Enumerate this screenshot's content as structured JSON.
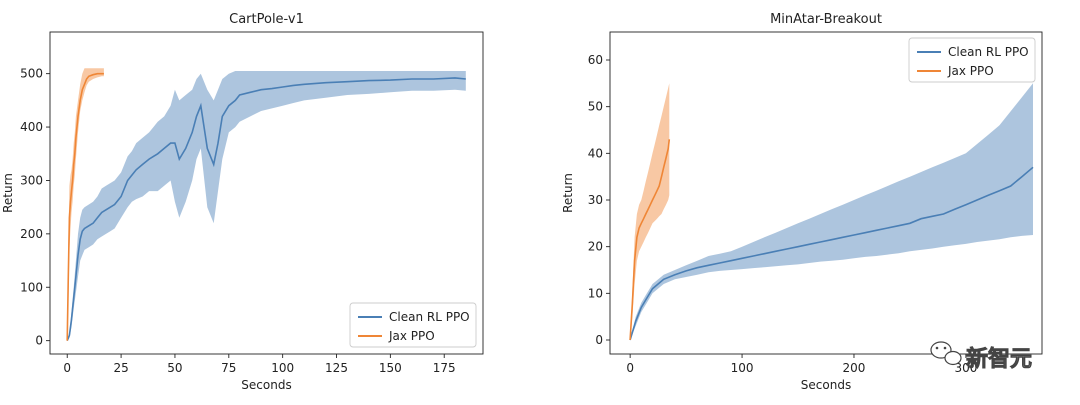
{
  "watermark": {
    "text": "新智元",
    "icon": "wechat-icon"
  },
  "chart_data": [
    {
      "type": "line",
      "title": "CartPole-v1",
      "xlabel": "Seconds",
      "ylabel": "Return",
      "xlim": [
        -8,
        193
      ],
      "ylim": [
        -25,
        578
      ],
      "xticks": [
        0,
        25,
        50,
        75,
        100,
        125,
        150,
        175
      ],
      "yticks": [
        0,
        100,
        200,
        300,
        400,
        500
      ],
      "grid": false,
      "legend_position": "bottom-right",
      "series": [
        {
          "name": "Clean RL PPO",
          "color": "#4a7fb5",
          "x": [
            0,
            1,
            2,
            3,
            4,
            5,
            6,
            7,
            8,
            10,
            12,
            14,
            16,
            18,
            20,
            22,
            25,
            28,
            30,
            32,
            35,
            38,
            40,
            42,
            45,
            48,
            50,
            52,
            55,
            58,
            60,
            62,
            65,
            68,
            70,
            72,
            75,
            78,
            80,
            85,
            90,
            95,
            100,
            105,
            110,
            120,
            130,
            140,
            150,
            160,
            170,
            180,
            185
          ],
          "y": [
            0,
            10,
            40,
            80,
            120,
            160,
            190,
            205,
            210,
            215,
            220,
            230,
            240,
            245,
            250,
            255,
            270,
            300,
            310,
            320,
            330,
            340,
            345,
            350,
            360,
            370,
            370,
            340,
            360,
            390,
            420,
            440,
            360,
            330,
            370,
            420,
            440,
            450,
            460,
            465,
            470,
            472,
            475,
            478,
            480,
            483,
            485,
            487,
            488,
            490,
            490,
            492,
            490
          ],
          "low": [
            0,
            5,
            25,
            60,
            90,
            120,
            150,
            160,
            170,
            175,
            180,
            190,
            195,
            200,
            205,
            210,
            230,
            250,
            260,
            265,
            270,
            280,
            280,
            280,
            290,
            300,
            260,
            230,
            260,
            300,
            340,
            360,
            250,
            220,
            280,
            340,
            390,
            400,
            410,
            420,
            430,
            435,
            440,
            445,
            450,
            455,
            460,
            462,
            465,
            468,
            468,
            470,
            468
          ],
          "high": [
            0,
            15,
            55,
            100,
            150,
            200,
            230,
            245,
            250,
            255,
            260,
            270,
            285,
            290,
            295,
            300,
            315,
            345,
            355,
            370,
            380,
            390,
            400,
            410,
            420,
            440,
            470,
            450,
            460,
            470,
            490,
            500,
            470,
            450,
            470,
            490,
            500,
            505,
            505,
            505,
            505,
            505,
            505,
            505,
            505,
            505,
            505,
            505,
            505,
            505,
            505,
            505,
            505
          ]
        },
        {
          "name": "Jax PPO",
          "color": "#ef8636",
          "x": [
            0,
            0.5,
            1,
            1.5,
            2,
            2.5,
            3,
            3.5,
            4,
            5,
            6,
            7,
            8,
            9,
            10,
            12,
            14,
            16,
            17
          ],
          "y": [
            0,
            120,
            230,
            260,
            280,
            300,
            330,
            350,
            380,
            420,
            450,
            470,
            480,
            490,
            495,
            498,
            500,
            500,
            500
          ],
          "low": [
            0,
            60,
            170,
            210,
            240,
            260,
            290,
            310,
            340,
            390,
            430,
            450,
            465,
            478,
            485,
            490,
            493,
            495,
            495
          ],
          "high": [
            0,
            180,
            290,
            310,
            320,
            340,
            370,
            390,
            420,
            450,
            480,
            500,
            510,
            510,
            510,
            510,
            510,
            510,
            510
          ]
        }
      ]
    },
    {
      "type": "line",
      "title": "MinAtar-Breakout",
      "xlabel": "Seconds",
      "ylabel": "Return",
      "xlim": [
        -18,
        368
      ],
      "ylim": [
        -3,
        66
      ],
      "xticks": [
        0,
        100,
        200,
        300
      ],
      "yticks": [
        0,
        10,
        20,
        30,
        40,
        50,
        60
      ],
      "grid": false,
      "legend_position": "top-right",
      "series": [
        {
          "name": "Clean RL PPO",
          "color": "#4a7fb5",
          "x": [
            0,
            5,
            10,
            15,
            20,
            30,
            40,
            50,
            60,
            70,
            80,
            90,
            100,
            110,
            120,
            130,
            140,
            150,
            160,
            170,
            180,
            190,
            200,
            210,
            220,
            230,
            240,
            250,
            260,
            270,
            280,
            290,
            300,
            310,
            320,
            330,
            340,
            350,
            360
          ],
          "y": [
            0,
            4,
            7,
            9,
            11,
            13,
            14,
            14.8,
            15.5,
            16,
            16.5,
            17,
            17.5,
            18,
            18.5,
            19,
            19.5,
            20,
            20.5,
            21,
            21.5,
            22,
            22.5,
            23,
            23.5,
            24,
            24.5,
            25,
            26,
            26.5,
            27,
            28,
            29,
            30,
            31,
            32,
            33,
            35,
            37
          ],
          "low": [
            0,
            3,
            6,
            8,
            10,
            12,
            13,
            13.5,
            14,
            14.5,
            14.8,
            15,
            15.2,
            15.4,
            15.6,
            15.8,
            16,
            16.2,
            16.5,
            16.8,
            17,
            17.2,
            17.5,
            17.8,
            18,
            18.3,
            18.6,
            19,
            19.3,
            19.6,
            20,
            20.3,
            20.6,
            21,
            21.3,
            21.6,
            22,
            22.3,
            22.5
          ],
          "high": [
            0,
            5,
            8,
            10,
            12,
            14,
            15,
            16,
            17,
            18,
            18.5,
            19,
            20,
            21,
            22,
            23,
            24,
            25,
            26,
            27,
            28,
            29,
            30,
            31,
            32,
            33,
            34,
            35,
            36,
            37,
            38,
            39,
            40,
            42,
            44,
            46,
            49,
            52,
            55
          ]
        },
        {
          "name": "Jax PPO",
          "color": "#ef8636",
          "x": [
            0,
            2,
            4,
            6,
            8,
            10,
            12,
            14,
            16,
            18,
            20,
            22,
            24,
            26,
            28,
            30,
            32,
            34,
            35
          ],
          "y": [
            0,
            8,
            17,
            22,
            24,
            25,
            26,
            27,
            28,
            29,
            30,
            31,
            32,
            33,
            35,
            37,
            39,
            41,
            43
          ],
          "low": [
            0,
            5,
            12,
            17,
            19,
            20,
            21,
            22,
            23,
            24,
            25,
            25.5,
            26,
            26.5,
            27,
            28,
            29,
            30,
            31
          ],
          "high": [
            0,
            11,
            22,
            27,
            29,
            30,
            32,
            34,
            36,
            38,
            40,
            42,
            44,
            46,
            48,
            50,
            52,
            54,
            55
          ]
        }
      ]
    }
  ]
}
